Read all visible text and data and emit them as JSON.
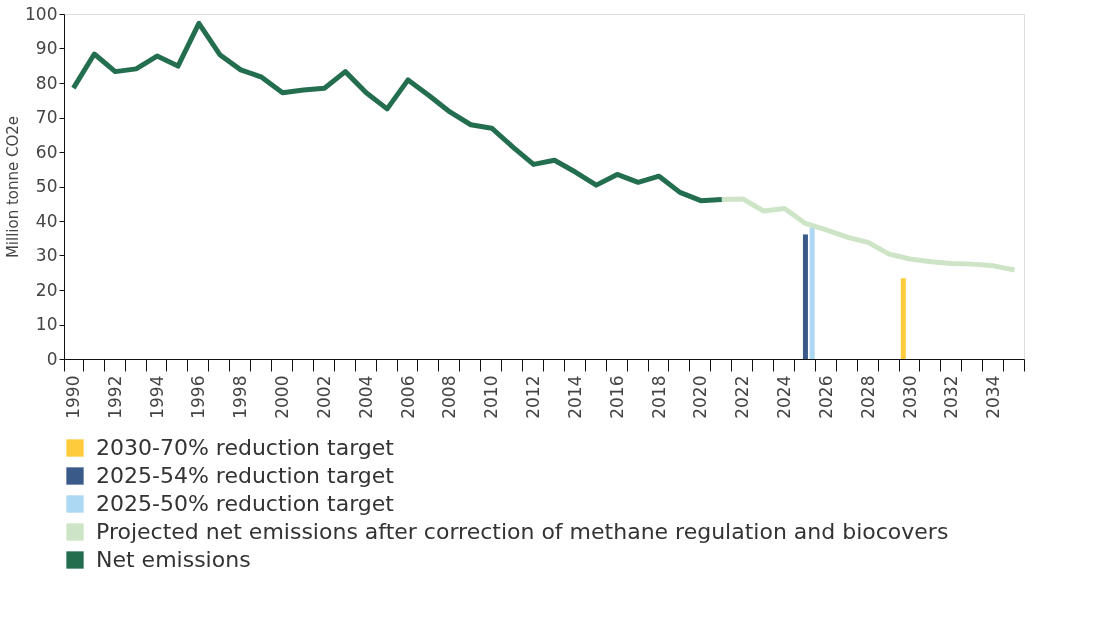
{
  "chart_data": {
    "type": "line",
    "ylabel": "Million tonne CO2e",
    "ylim": [
      0,
      100
    ],
    "yticks": [
      0,
      10,
      20,
      30,
      40,
      50,
      60,
      70,
      80,
      90,
      100
    ],
    "grid": false,
    "legend": "bottom",
    "line_style": "solid",
    "marker": "none",
    "categories": [
      "1990",
      null,
      "1992",
      null,
      "1994",
      null,
      "1996",
      null,
      "1998",
      null,
      "2000",
      null,
      "2002",
      null,
      "2004",
      null,
      "2006",
      null,
      "2008",
      null,
      "2010",
      null,
      "2012",
      null,
      "2014",
      null,
      "2016",
      null,
      "2018",
      null,
      "2020",
      null,
      "2022",
      null,
      "2024",
      null,
      "2026",
      null,
      "2028",
      null,
      "2030",
      null,
      "2032",
      null,
      "2034",
      null
    ],
    "series": [
      {
        "name": "2030-70% reduction target",
        "type": "bar",
        "color": "#fdcb3c",
        "values": [
          null,
          null,
          null,
          null,
          null,
          null,
          null,
          null,
          null,
          null,
          null,
          null,
          null,
          null,
          null,
          null,
          null,
          null,
          null,
          null,
          null,
          null,
          null,
          null,
          null,
          null,
          null,
          null,
          null,
          null,
          null,
          null,
          null,
          null,
          null,
          null,
          null,
          null,
          null,
          null,
          23.4,
          null,
          null,
          null,
          null,
          null
        ]
      },
      {
        "name": "2025-54% reduction target",
        "type": "bar",
        "color": "#3a5a8a",
        "values": [
          null,
          null,
          null,
          null,
          null,
          null,
          null,
          null,
          null,
          null,
          null,
          null,
          null,
          null,
          null,
          null,
          null,
          null,
          null,
          null,
          null,
          null,
          null,
          null,
          null,
          null,
          null,
          null,
          null,
          null,
          null,
          null,
          null,
          null,
          null,
          36.1,
          null,
          null,
          null,
          null,
          null,
          null,
          null,
          null,
          null,
          null
        ]
      },
      {
        "name": "2025-50% reduction target",
        "type": "bar",
        "color": "#acd8f3",
        "values": [
          null,
          null,
          null,
          null,
          null,
          null,
          null,
          null,
          null,
          null,
          null,
          null,
          null,
          null,
          null,
          null,
          null,
          null,
          null,
          null,
          null,
          null,
          null,
          null,
          null,
          null,
          null,
          null,
          null,
          null,
          null,
          null,
          null,
          null,
          null,
          38.1,
          null,
          null,
          null,
          null,
          null,
          null,
          null,
          null,
          null,
          null
        ]
      },
      {
        "name": "Projected net emissions after correction of methane regulation and biocovers",
        "color": "#cde5c6",
        "values": [
          null,
          null,
          null,
          null,
          null,
          null,
          null,
          null,
          null,
          null,
          null,
          null,
          null,
          null,
          null,
          null,
          null,
          null,
          null,
          null,
          null,
          null,
          null,
          null,
          null,
          null,
          null,
          null,
          null,
          null,
          null,
          46.2,
          46.4,
          42.9,
          43.6,
          39.3,
          37.4,
          35.3,
          33.8,
          30.4,
          29.0,
          28.2,
          27.7,
          27.5,
          27.0,
          25.8
        ]
      },
      {
        "name": "Net emissions",
        "color": "#246e50",
        "values": [
          78.5,
          88.4,
          83.3,
          84.1,
          87.8,
          84.9,
          97.3,
          88.2,
          83.8,
          81.7,
          77.2,
          78.0,
          78.5,
          83.3,
          77.2,
          72.5,
          80.9,
          76.4,
          71.6,
          67.9,
          66.9,
          61.5,
          56.4,
          57.6,
          54.2,
          50.4,
          53.5,
          51.2,
          53.0,
          48.3,
          45.9,
          46.2,
          null,
          null,
          null,
          null,
          null,
          null,
          null,
          null,
          null,
          null,
          null,
          null,
          null,
          null
        ]
      }
    ]
  }
}
